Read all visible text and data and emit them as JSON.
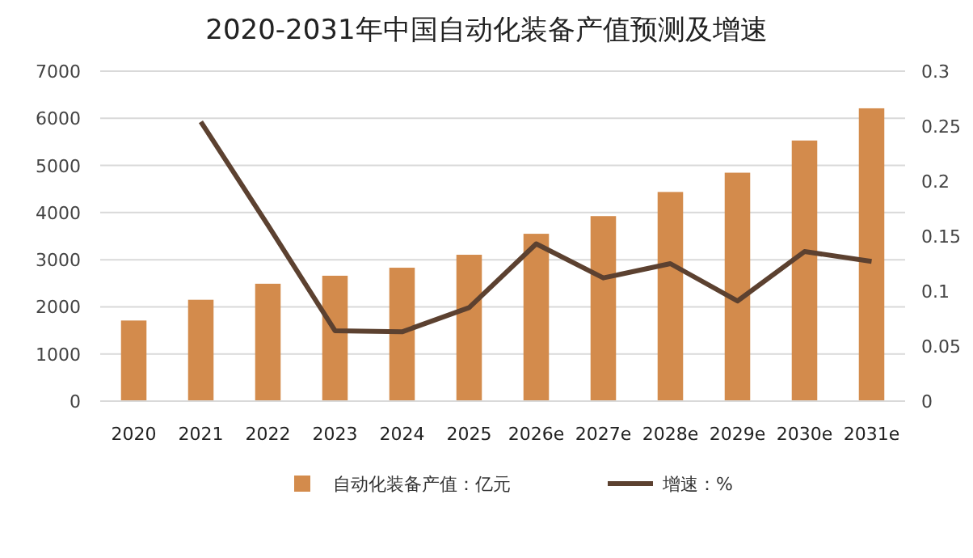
{
  "chart_data": {
    "type": "bar",
    "title": "2020-2031年中国自动化装备产值预测及增速",
    "categories": [
      "2020",
      "2021",
      "2022",
      "2023",
      "2024",
      "2025",
      "2026e",
      "2027e",
      "2028e",
      "2029e",
      "2030e",
      "2031e"
    ],
    "series": [
      {
        "name": "自动化装备产值：亿元",
        "color": "#d38b4c",
        "values": [
          1710,
          2150,
          2490,
          2660,
          2830,
          3105,
          3550,
          3925,
          4437,
          4846,
          5529,
          6212
        ]
      },
      {
        "name": "增速：%",
        "type": "line",
        "axis": "y2",
        "color": "#5c4130",
        "values": [
          null,
          0.254,
          0.16,
          0.064,
          0.063,
          0.085,
          0.143,
          0.112,
          0.125,
          0.091,
          0.136,
          0.127
        ]
      }
    ],
    "ylim": [
      0,
      7000
    ],
    "yticks": [
      0,
      1000,
      2000,
      3000,
      4000,
      5000,
      6000,
      7000
    ],
    "y2lim": [
      0,
      0.3
    ],
    "y2ticks": [
      0,
      0.05,
      0.1,
      0.15,
      0.2,
      0.25,
      0.3
    ],
    "grid": "y",
    "legend": "bottom",
    "marker": "none"
  }
}
